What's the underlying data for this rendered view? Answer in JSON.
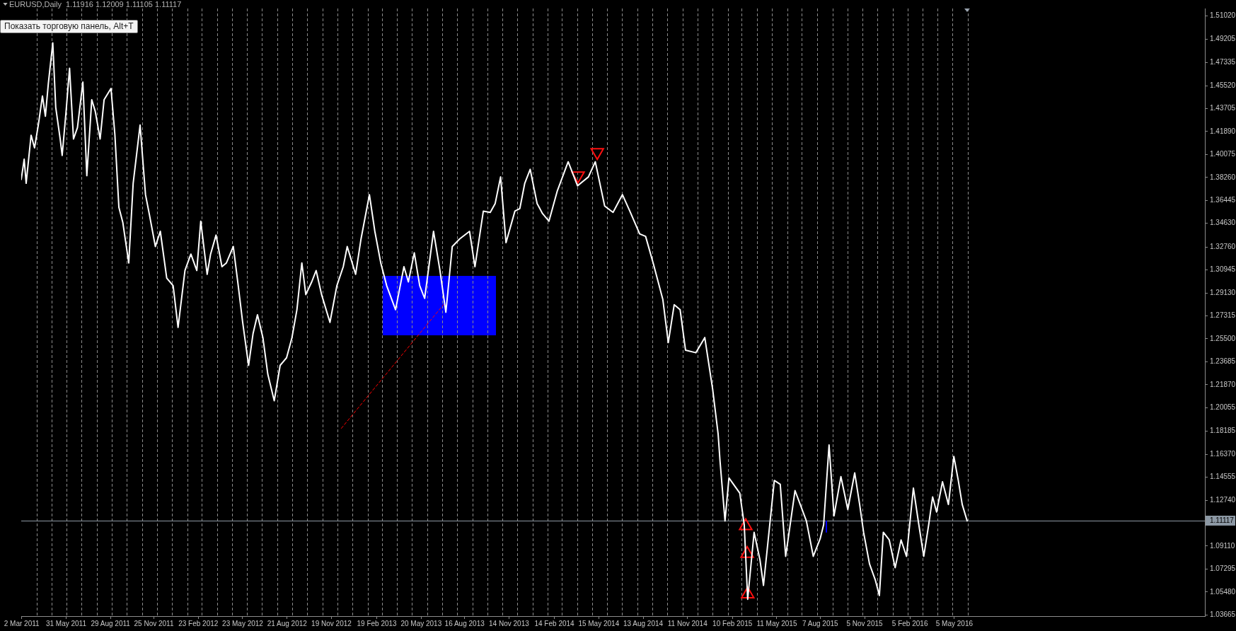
{
  "chart_data": {
    "type": "line",
    "title": "EURUSD,Daily",
    "subtitle": "1.11916 1.12009 1.11105 1.11117",
    "annotations": [
      "Показать торговую панель, Alt+T"
    ],
    "xlim": [
      "2011-03-01",
      "2017-09-25"
    ],
    "xticks": [
      {
        "value": "2011-03-02",
        "label": "2 Mar 2011"
      },
      {
        "value": "2011-05-31",
        "label": "31 May 2011"
      },
      {
        "value": "2011-08-29",
        "label": "29 Aug 2011"
      },
      {
        "value": "2011-11-25",
        "label": "25 Nov 2011"
      },
      {
        "value": "2012-02-23",
        "label": "23 Feb 2012"
      },
      {
        "value": "2012-05-23",
        "label": "23 May 2012"
      },
      {
        "value": "2012-08-21",
        "label": "21 Aug 2012"
      },
      {
        "value": "2012-11-19",
        "label": "19 Nov 2012"
      },
      {
        "value": "2013-02-19",
        "label": "19 Feb 2013"
      },
      {
        "value": "2013-05-20",
        "label": "20 May 2013"
      },
      {
        "value": "2013-08-16",
        "label": "16 Aug 2013"
      },
      {
        "value": "2013-11-14",
        "label": "14 Nov 2013"
      },
      {
        "value": "2014-02-14",
        "label": "14 Feb 2014"
      },
      {
        "value": "2014-05-15",
        "label": "15 May 2014"
      },
      {
        "value": "2014-08-13",
        "label": "13 Aug 2014"
      },
      {
        "value": "2014-11-11",
        "label": "11 Nov 2014"
      },
      {
        "value": "2015-02-10",
        "label": "10 Feb 2015"
      },
      {
        "value": "2015-05-11",
        "label": "11 May 2015"
      },
      {
        "value": "2015-08-07",
        "label": "7 Aug 2015"
      },
      {
        "value": "2015-11-05",
        "label": "5 Nov 2015"
      },
      {
        "value": "2016-02-05",
        "label": "5 Feb 2016"
      },
      {
        "value": "2016-05-05",
        "label": "5 May 2016"
      }
    ],
    "ylim": [
      1.0357,
      1.5162
    ],
    "yticks": [
      {
        "value": 1.5102,
        "label": "1.51020"
      },
      1.49205,
      1.47335,
      {
        "value": 1.4552,
        "label": "1.45520"
      },
      1.43705,
      {
        "value": 1.4189,
        "label": "1.41890"
      },
      1.40075,
      {
        "value": 1.3826,
        "label": "1.38260"
      },
      1.36445,
      {
        "value": 1.3463,
        "label": "1.34630"
      },
      {
        "value": 1.3276,
        "label": "1.32760"
      },
      1.30945,
      {
        "value": 1.2913,
        "label": "1.29130"
      },
      1.27315,
      {
        "value": 1.255,
        "label": "1.25500"
      },
      1.23685,
      {
        "value": 1.2187,
        "label": "1.21870"
      },
      1.20055,
      1.18185,
      {
        "value": 1.1637,
        "label": "1.16370"
      },
      1.14555,
      {
        "value": 1.1274,
        "label": "1.12740"
      },
      {
        "value": 1.0911,
        "label": "1.09110"
      },
      1.07295,
      {
        "value": 1.0548,
        "label": "1.05480"
      },
      1.03665
    ],
    "marker": "none",
    "ref_lines": [
      {
        "axis": "x",
        "value": "2011-04-01",
        "color": "#8c8c8c",
        "line_style": "dashed"
      },
      {
        "axis": "x",
        "value": "2011-05-01",
        "color": "#8c8c8c",
        "line_style": "dashed"
      },
      {
        "axis": "x",
        "value": "2011-06-01",
        "color": "#8c8c8c",
        "line_style": "dashed"
      },
      {
        "axis": "x",
        "value": "2011-07-01",
        "color": "#8c8c8c",
        "line_style": "dashed"
      },
      {
        "axis": "x",
        "value": "2011-08-01",
        "color": "#8c8c8c",
        "line_style": "dashed"
      },
      {
        "axis": "x",
        "value": "2011-09-01",
        "color": "#8c8c8c",
        "line_style": "dashed"
      },
      {
        "axis": "x",
        "value": "2011-10-01",
        "color": "#8c8c8c",
        "line_style": "dashed"
      },
      {
        "axis": "x",
        "value": "2011-11-01",
        "color": "#8c8c8c",
        "line_style": "dashed"
      },
      {
        "axis": "x",
        "value": "2011-12-01",
        "color": "#8c8c8c",
        "line_style": "dashed"
      },
      {
        "axis": "x",
        "value": "2012-01-01",
        "color": "#8c8c8c",
        "line_style": "dashed"
      },
      {
        "axis": "x",
        "value": "2012-02-01",
        "color": "#8c8c8c",
        "line_style": "dashed"
      },
      {
        "axis": "x",
        "value": "2012-03-01",
        "color": "#8c8c8c",
        "line_style": "dashed"
      },
      {
        "axis": "x",
        "value": "2012-04-01",
        "color": "#8c8c8c",
        "line_style": "dashed"
      },
      {
        "axis": "x",
        "value": "2012-05-01",
        "color": "#8c8c8c",
        "line_style": "dashed"
      },
      {
        "axis": "x",
        "value": "2012-06-01",
        "color": "#8c8c8c",
        "line_style": "dashed"
      },
      {
        "axis": "x",
        "value": "2012-07-01",
        "color": "#8c8c8c",
        "line_style": "dashed"
      },
      {
        "axis": "x",
        "value": "2012-08-01",
        "color": "#8c8c8c",
        "line_style": "dashed"
      },
      {
        "axis": "x",
        "value": "2012-09-01",
        "color": "#8c8c8c",
        "line_style": "dashed"
      },
      {
        "axis": "x",
        "value": "2012-10-01",
        "color": "#8c8c8c",
        "line_style": "dashed"
      },
      {
        "axis": "x",
        "value": "2012-11-01",
        "color": "#8c8c8c",
        "line_style": "dashed"
      },
      {
        "axis": "x",
        "value": "2012-12-01",
        "color": "#8c8c8c",
        "line_style": "dashed"
      },
      {
        "axis": "x",
        "value": "2013-01-01",
        "color": "#8c8c8c",
        "line_style": "dashed"
      },
      {
        "axis": "x",
        "value": "2013-02-01",
        "color": "#8c8c8c",
        "line_style": "dashed"
      },
      {
        "axis": "x",
        "value": "2013-03-01",
        "color": "#8c8c8c",
        "line_style": "dashed"
      },
      {
        "axis": "x",
        "value": "2013-04-01",
        "color": "#8c8c8c",
        "line_style": "dashed"
      },
      {
        "axis": "x",
        "value": "2013-05-01",
        "color": "#8c8c8c",
        "line_style": "dashed"
      },
      {
        "axis": "x",
        "value": "2013-06-01",
        "color": "#8c8c8c",
        "line_style": "dashed"
      },
      {
        "axis": "x",
        "value": "2013-07-01",
        "color": "#8c8c8c",
        "line_style": "dashed"
      },
      {
        "axis": "x",
        "value": "2013-08-01",
        "color": "#8c8c8c",
        "line_style": "dashed"
      },
      {
        "axis": "x",
        "value": "2013-09-01",
        "color": "#8c8c8c",
        "line_style": "dashed"
      },
      {
        "axis": "x",
        "value": "2013-10-01",
        "color": "#8c8c8c",
        "line_style": "dashed"
      },
      {
        "axis": "x",
        "value": "2013-11-01",
        "color": "#8c8c8c",
        "line_style": "dashed"
      },
      {
        "axis": "x",
        "value": "2013-12-01",
        "color": "#8c8c8c",
        "line_style": "dashed"
      },
      {
        "axis": "x",
        "value": "2014-01-01",
        "color": "#8c8c8c",
        "line_style": "dashed"
      },
      {
        "axis": "x",
        "value": "2014-02-01",
        "color": "#8c8c8c",
        "line_style": "dashed"
      },
      {
        "axis": "x",
        "value": "2014-03-01",
        "color": "#8c8c8c",
        "line_style": "dashed"
      },
      {
        "axis": "x",
        "value": "2014-04-01",
        "color": "#8c8c8c",
        "line_style": "dashed"
      },
      {
        "axis": "x",
        "value": "2014-05-01",
        "color": "#8c8c8c",
        "line_style": "dashed"
      },
      {
        "axis": "x",
        "value": "2014-06-01",
        "color": "#8c8c8c",
        "line_style": "dashed"
      },
      {
        "axis": "x",
        "value": "2014-07-01",
        "color": "#8c8c8c",
        "line_style": "dashed"
      },
      {
        "axis": "x",
        "value": "2014-08-01",
        "color": "#8c8c8c",
        "line_style": "dashed"
      },
      {
        "axis": "x",
        "value": "2014-09-01",
        "color": "#8c8c8c",
        "line_style": "dashed"
      },
      {
        "axis": "x",
        "value": "2014-10-01",
        "color": "#8c8c8c",
        "line_style": "dashed"
      },
      {
        "axis": "x",
        "value": "2014-11-01",
        "color": "#8c8c8c",
        "line_style": "dashed"
      },
      {
        "axis": "x",
        "value": "2014-12-01",
        "color": "#8c8c8c",
        "line_style": "dashed"
      },
      {
        "axis": "x",
        "value": "2015-01-01",
        "color": "#8c8c8c",
        "line_style": "dashed"
      },
      {
        "axis": "x",
        "value": "2015-02-01",
        "color": "#8c8c8c",
        "line_style": "dashed"
      },
      {
        "axis": "x",
        "value": "2015-03-01",
        "color": "#8c8c8c",
        "line_style": "dashed"
      },
      {
        "axis": "x",
        "value": "2015-04-01",
        "color": "#8c8c8c",
        "line_style": "dashed"
      },
      {
        "axis": "x",
        "value": "2015-05-01",
        "color": "#8c8c8c",
        "line_style": "dashed"
      },
      {
        "axis": "x",
        "value": "2015-06-01",
        "color": "#8c8c8c",
        "line_style": "dashed"
      },
      {
        "axis": "x",
        "value": "2015-07-01",
        "color": "#8c8c8c",
        "line_style": "dashed"
      },
      {
        "axis": "x",
        "value": "2015-08-01",
        "color": "#8c8c8c",
        "line_style": "dashed"
      },
      {
        "axis": "x",
        "value": "2015-09-01",
        "color": "#8c8c8c",
        "line_style": "dashed"
      },
      {
        "axis": "x",
        "value": "2015-10-01",
        "color": "#8c8c8c",
        "line_style": "dashed"
      },
      {
        "axis": "x",
        "value": "2015-11-01",
        "color": "#8c8c8c",
        "line_style": "dashed"
      },
      {
        "axis": "x",
        "value": "2015-12-01",
        "color": "#8c8c8c",
        "line_style": "dashed"
      },
      {
        "axis": "x",
        "value": "2016-01-01",
        "color": "#8c8c8c",
        "line_style": "dashed"
      },
      {
        "axis": "x",
        "value": "2016-02-01",
        "color": "#8c8c8c",
        "line_style": "dashed"
      },
      {
        "axis": "x",
        "value": "2016-03-01",
        "color": "#8c8c8c",
        "line_style": "dashed"
      },
      {
        "axis": "x",
        "value": "2016-04-01",
        "color": "#8c8c8c",
        "line_style": "dashed"
      },
      {
        "axis": "x",
        "value": "2016-05-01",
        "color": "#8c8c8c",
        "line_style": "dashed"
      },
      {
        "axis": "x",
        "value": "2016-06-01",
        "color": "#8c8c8c",
        "line_style": "dashed"
      },
      {
        "axis": "y",
        "value": 1.11117,
        "label": "1.11117",
        "color": "#8c98a4",
        "line_style": "solid"
      }
    ],
    "series": [
      {
        "color": "#ffffff",
        "line_style": "solid",
        "x": [
          "2011-03-01",
          "2011-03-07",
          "2011-03-11",
          "2011-03-21",
          "2011-03-28",
          "2011-04-05",
          "2011-04-13",
          "2011-04-19",
          "2011-04-25",
          "2011-05-04",
          "2011-05-10",
          "2011-05-19",
          "2011-05-23",
          "2011-05-31",
          "2011-06-07",
          "2011-06-15",
          "2011-06-23",
          "2011-07-04",
          "2011-07-12",
          "2011-07-22",
          "2011-07-29",
          "2011-08-08",
          "2011-08-16",
          "2011-08-30",
          "2011-09-07",
          "2011-09-15",
          "2011-09-23",
          "2011-10-05",
          "2011-10-14",
          "2011-10-28",
          "2011-11-08",
          "2011-11-16",
          "2011-11-28",
          "2011-12-08",
          "2011-12-21",
          "2012-01-03",
          "2012-01-13",
          "2012-01-27",
          "2012-02-08",
          "2012-02-20",
          "2012-02-28",
          "2012-03-12",
          "2012-03-19",
          "2012-03-30",
          "2012-04-11",
          "2012-04-20",
          "2012-05-04",
          "2012-05-14",
          "2012-05-23",
          "2012-06-04",
          "2012-06-13",
          "2012-06-22",
          "2012-07-03",
          "2012-07-13",
          "2012-07-26",
          "2012-08-07",
          "2012-08-20",
          "2012-08-31",
          "2012-09-10",
          "2012-09-20",
          "2012-09-28",
          "2012-10-10",
          "2012-10-19",
          "2012-10-30",
          "2012-11-16",
          "2012-11-30",
          "2012-12-13",
          "2012-12-21",
          "2013-01-07",
          "2013-01-18",
          "2013-02-04",
          "2013-02-15",
          "2013-02-27",
          "2013-03-11",
          "2013-03-29",
          "2013-04-15",
          "2013-04-24",
          "2013-05-06",
          "2013-05-17",
          "2013-05-27",
          "2013-06-14",
          "2013-06-27",
          "2013-07-09",
          "2013-07-22",
          "2013-08-06",
          "2013-08-26",
          "2013-09-06",
          "2013-09-23",
          "2013-10-07",
          "2013-10-17",
          "2013-10-28",
          "2013-11-08",
          "2013-11-26",
          "2013-12-06",
          "2013-12-16",
          "2013-12-27",
          "2014-01-10",
          "2014-01-21",
          "2014-02-03",
          "2014-02-20",
          "2014-03-14",
          "2014-04-02",
          "2014-04-24",
          "2014-05-08",
          "2014-05-27",
          "2014-06-13",
          "2014-07-02",
          "2014-07-17",
          "2014-08-06",
          "2014-08-18",
          "2014-09-03",
          "2014-09-22",
          "2014-10-03",
          "2014-10-15",
          "2014-10-27",
          "2014-11-07",
          "2014-11-28",
          "2014-12-16",
          "2015-01-01",
          "2015-01-12",
          "2015-01-16",
          "2015-01-26",
          "2015-02-03",
          "2015-02-25",
          "2015-03-06",
          "2015-03-13",
          "2015-03-26",
          "2015-04-07",
          "2015-04-14",
          "2015-05-06",
          "2015-05-18",
          "2015-05-29",
          "2015-06-17",
          "2015-07-10",
          "2015-07-24",
          "2015-08-07",
          "2015-08-14",
          "2015-08-25",
          "2015-09-04",
          "2015-09-18",
          "2015-10-02",
          "2015-10-16",
          "2015-10-26",
          "2015-11-03",
          "2015-11-15",
          "2015-11-27",
          "2015-12-05",
          "2015-12-13",
          "2015-12-25",
          "2016-01-06",
          "2016-01-18",
          "2016-01-29",
          "2016-02-12",
          "2016-02-23",
          "2016-03-04",
          "2016-03-14",
          "2016-03-22",
          "2016-03-30",
          "2016-04-11",
          "2016-04-23",
          "2016-05-04",
          "2016-05-13",
          "2016-05-21",
          "2016-05-31"
        ],
        "values": [
          1.381,
          1.397,
          1.378,
          1.416,
          1.406,
          1.425,
          1.447,
          1.431,
          1.457,
          1.489,
          1.438,
          1.413,
          1.4,
          1.435,
          1.469,
          1.413,
          1.422,
          1.458,
          1.384,
          1.444,
          1.435,
          1.413,
          1.444,
          1.453,
          1.416,
          1.359,
          1.347,
          1.315,
          1.378,
          1.424,
          1.369,
          1.353,
          1.328,
          1.34,
          1.303,
          1.297,
          1.264,
          1.309,
          1.322,
          1.309,
          1.348,
          1.306,
          1.322,
          1.337,
          1.312,
          1.315,
          1.328,
          1.297,
          1.268,
          1.234,
          1.259,
          1.274,
          1.256,
          1.227,
          1.206,
          1.234,
          1.24,
          1.256,
          1.278,
          1.315,
          1.29,
          1.3,
          1.309,
          1.29,
          1.268,
          1.297,
          1.312,
          1.328,
          1.306,
          1.334,
          1.369,
          1.34,
          1.315,
          1.297,
          1.278,
          1.312,
          1.3,
          1.323,
          1.297,
          1.287,
          1.34,
          1.309,
          1.276,
          1.328,
          1.334,
          1.34,
          1.312,
          1.356,
          1.355,
          1.362,
          1.383,
          1.331,
          1.356,
          1.358,
          1.378,
          1.389,
          1.362,
          1.354,
          1.348,
          1.372,
          1.395,
          1.376,
          1.383,
          1.395,
          1.36,
          1.355,
          1.369,
          1.356,
          1.338,
          1.336,
          1.314,
          1.286,
          1.252,
          1.282,
          1.278,
          1.246,
          1.244,
          1.256,
          1.215,
          1.18,
          1.158,
          1.111,
          1.145,
          1.133,
          1.108,
          1.049,
          1.102,
          1.08,
          1.06,
          1.143,
          1.14,
          1.083,
          1.135,
          1.111,
          1.083,
          1.097,
          1.108,
          1.171,
          1.115,
          1.146,
          1.12,
          1.149,
          1.124,
          1.102,
          1.077,
          1.064,
          1.052,
          1.102,
          1.096,
          1.074,
          1.096,
          1.083,
          1.137,
          1.108,
          1.083,
          1.108,
          1.13,
          1.118,
          1.142,
          1.124,
          1.162,
          1.143,
          1.124,
          1.111
        ]
      },
      {
        "type": "line",
        "color": "#ff0000",
        "line_style": "dashed",
        "x": [
          "2012-12-09",
          "2013-07-05"
        ],
        "values": [
          1.1842,
          1.2824
        ]
      },
      {
        "type": "scatter",
        "color": "#ff1010",
        "marker": "triangle",
        "x": [
          "2014-04-03",
          "2014-05-12"
        ],
        "values": [
          1.384,
          1.4025
        ]
      },
      {
        "type": "scatter",
        "color": "#ff1010",
        "marker": "triangle",
        "x": [
          "2015-03-09",
          "2015-03-12",
          "2015-03-13"
        ],
        "values": [
          1.107,
          1.085,
          1.053
        ]
      }
    ]
  }
}
